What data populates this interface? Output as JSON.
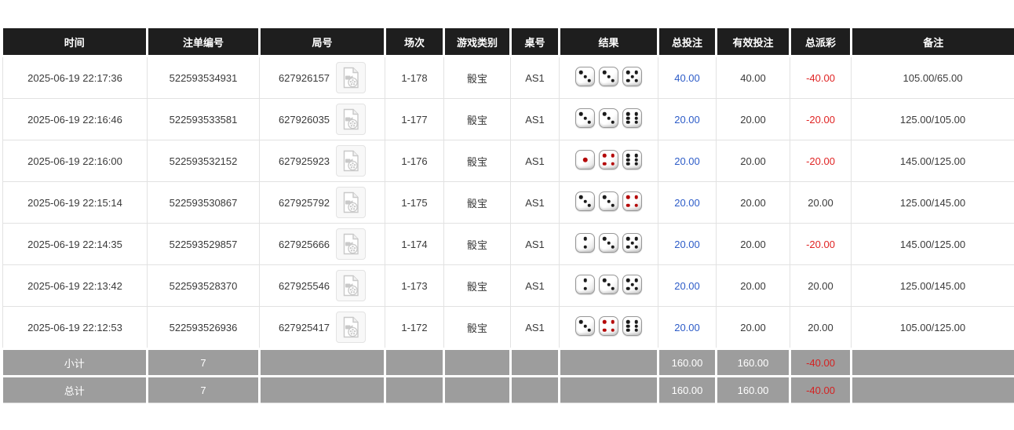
{
  "colors": {
    "header_bg": "#1e1e1e",
    "header_text": "#ffffff",
    "row_text": "#3a3a3a",
    "total_bet_blue": "#2d5cc8",
    "negative_red": "#e02424",
    "summary_bg": "#9d9d9d",
    "summary_negative_red": "#d42222",
    "grid_line": "#e2e2e2",
    "dice_pip_black": "#1b1b1b",
    "dice_pip_red": "#b40707"
  },
  "icons": {
    "video_replay": "video-file-icon"
  },
  "table": {
    "columns": [
      {
        "key": "time",
        "label": "时间"
      },
      {
        "key": "bet_id",
        "label": "注单编号"
      },
      {
        "key": "round_id",
        "label": "局号"
      },
      {
        "key": "session",
        "label": "场次"
      },
      {
        "key": "game_type",
        "label": "游戏类别"
      },
      {
        "key": "table_no",
        "label": "桌号"
      },
      {
        "key": "result",
        "label": "结果"
      },
      {
        "key": "total_bet",
        "label": "总投注"
      },
      {
        "key": "valid_bet",
        "label": "有效投注"
      },
      {
        "key": "total_payout",
        "label": "总派彩"
      },
      {
        "key": "remark",
        "label": "备注"
      }
    ],
    "rows": [
      {
        "time": "2025-06-19 22:17:36",
        "bet_id": "522593534931",
        "round_id": "627926157",
        "session": "1-178",
        "game_type": "骰宝",
        "table_no": "AS1",
        "result": [
          3,
          3,
          5
        ],
        "total_bet": "40.00",
        "valid_bet": "40.00",
        "total_payout": "-40.00",
        "remark": "105.00/65.00"
      },
      {
        "time": "2025-06-19 22:16:46",
        "bet_id": "522593533581",
        "round_id": "627926035",
        "session": "1-177",
        "game_type": "骰宝",
        "table_no": "AS1",
        "result": [
          3,
          3,
          6
        ],
        "total_bet": "20.00",
        "valid_bet": "20.00",
        "total_payout": "-20.00",
        "remark": "125.00/105.00"
      },
      {
        "time": "2025-06-19 22:16:00",
        "bet_id": "522593532152",
        "round_id": "627925923",
        "session": "1-176",
        "game_type": "骰宝",
        "table_no": "AS1",
        "result": [
          1,
          4,
          6
        ],
        "total_bet": "20.00",
        "valid_bet": "20.00",
        "total_payout": "-20.00",
        "remark": "145.00/125.00"
      },
      {
        "time": "2025-06-19 22:15:14",
        "bet_id": "522593530867",
        "round_id": "627925792",
        "session": "1-175",
        "game_type": "骰宝",
        "table_no": "AS1",
        "result": [
          3,
          3,
          4
        ],
        "total_bet": "20.00",
        "valid_bet": "20.00",
        "total_payout": "20.00",
        "remark": "125.00/145.00"
      },
      {
        "time": "2025-06-19 22:14:35",
        "bet_id": "522593529857",
        "round_id": "627925666",
        "session": "1-174",
        "game_type": "骰宝",
        "table_no": "AS1",
        "result": [
          2,
          3,
          5
        ],
        "total_bet": "20.00",
        "valid_bet": "20.00",
        "total_payout": "-20.00",
        "remark": "145.00/125.00"
      },
      {
        "time": "2025-06-19 22:13:42",
        "bet_id": "522593528370",
        "round_id": "627925546",
        "session": "1-173",
        "game_type": "骰宝",
        "table_no": "AS1",
        "result": [
          2,
          3,
          5
        ],
        "total_bet": "20.00",
        "valid_bet": "20.00",
        "total_payout": "20.00",
        "remark": "125.00/145.00"
      },
      {
        "time": "2025-06-19 22:12:53",
        "bet_id": "522593526936",
        "round_id": "627925417",
        "session": "1-172",
        "game_type": "骰宝",
        "table_no": "AS1",
        "result": [
          3,
          4,
          6
        ],
        "total_bet": "20.00",
        "valid_bet": "20.00",
        "total_payout": "20.00",
        "remark": "105.00/125.00"
      }
    ],
    "summary": [
      {
        "label": "小计",
        "count": "7",
        "total_bet": "160.00",
        "valid_bet": "160.00",
        "total_payout": "-40.00"
      },
      {
        "label": "总计",
        "count": "7",
        "total_bet": "160.00",
        "valid_bet": "160.00",
        "total_payout": "-40.00"
      }
    ]
  }
}
